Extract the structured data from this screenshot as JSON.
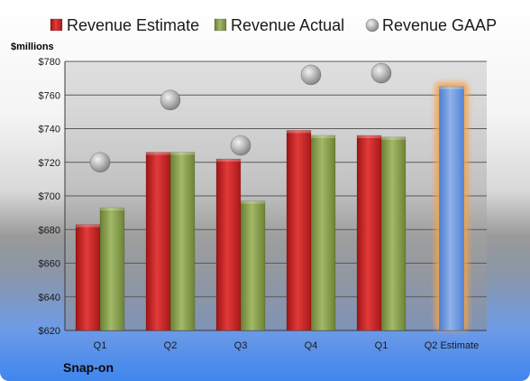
{
  "chart_data": {
    "type": "bar",
    "unit_label": "$millions",
    "company": "Snap-on",
    "categories": [
      "Q1",
      "Q2",
      "Q3",
      "Q4",
      "Q1",
      "Q2 Estimate"
    ],
    "ylim": [
      620,
      780
    ],
    "yticks": [
      620,
      640,
      660,
      680,
      700,
      720,
      740,
      760,
      780
    ],
    "ytick_labels": [
      "$620",
      "$640",
      "$660",
      "$680",
      "$700",
      "$720",
      "$740",
      "$760",
      "$780"
    ],
    "grid": true,
    "legend_position": "top",
    "series": [
      {
        "name": "Revenue Estimate",
        "kind": "bar",
        "color": "#d42d2d",
        "values": [
          683,
          726,
          722,
          739,
          736,
          null
        ]
      },
      {
        "name": "Revenue Actual",
        "kind": "bar",
        "color": "#8fa654",
        "values": [
          693,
          726,
          697,
          736,
          735,
          null
        ]
      },
      {
        "name": "Revenue GAAP",
        "kind": "marker",
        "color": "#a9a9a9",
        "values": [
          720,
          757,
          730,
          772,
          773,
          null
        ]
      },
      {
        "name": "Q2 Estimate",
        "kind": "bar",
        "color": "#6f9ae0",
        "highlight": "#f5a34a",
        "values": [
          null,
          null,
          null,
          null,
          null,
          765
        ]
      }
    ]
  }
}
